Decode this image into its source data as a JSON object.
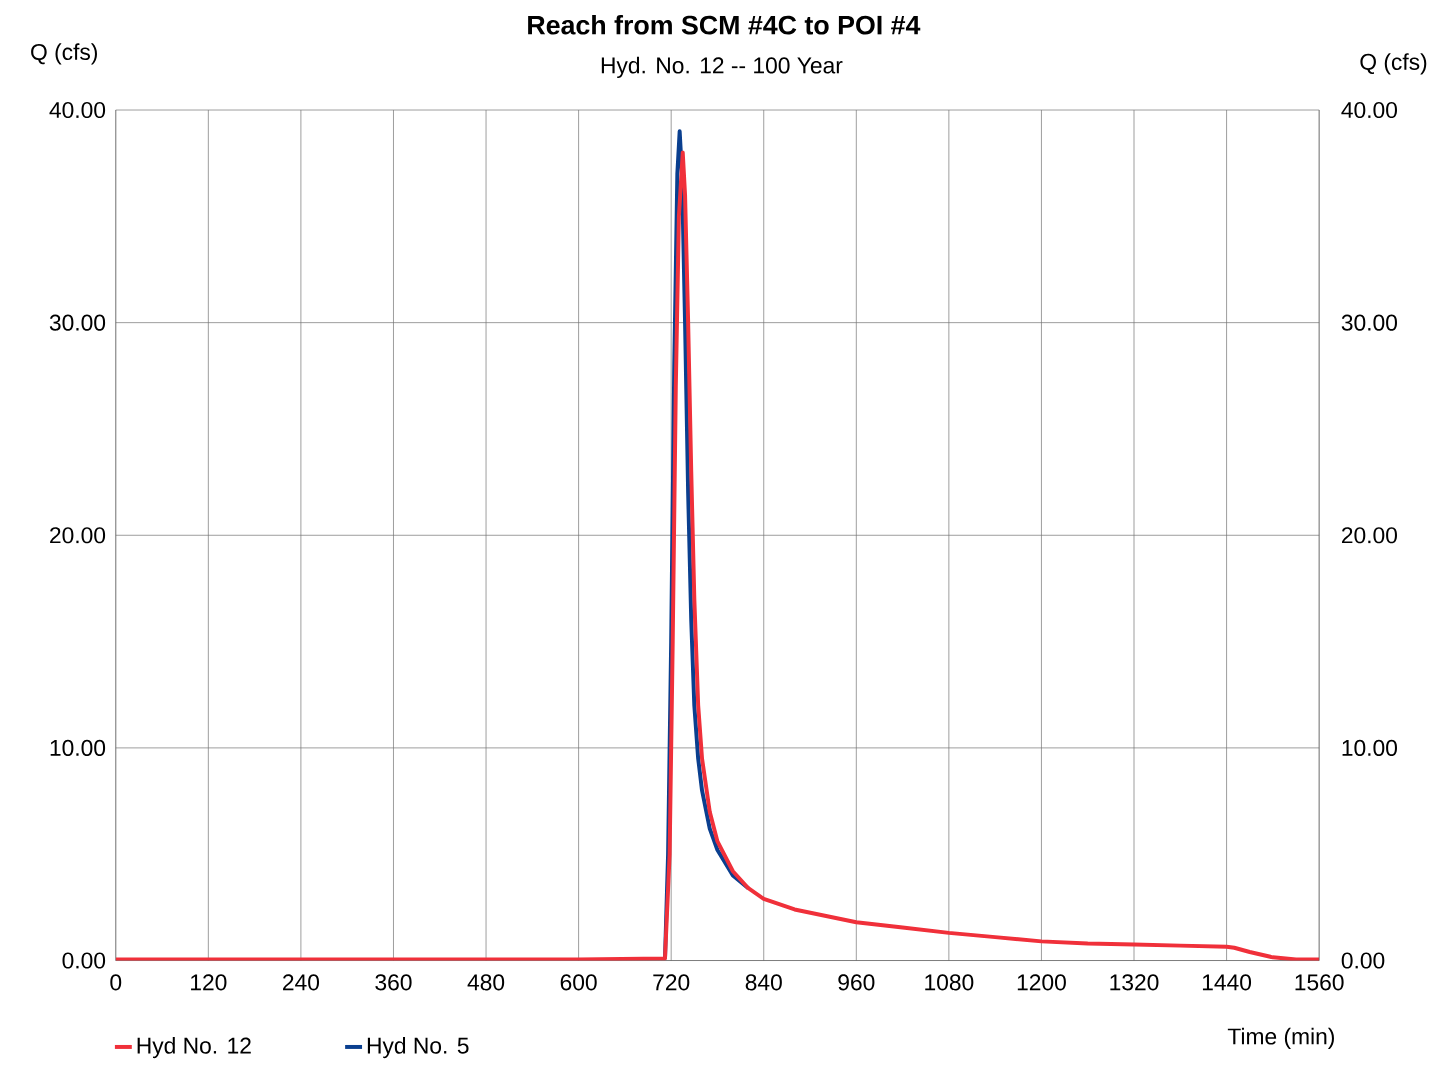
{
  "chart_data": {
    "type": "line",
    "title": "Reach from SCM #4C to POI #4",
    "subtitle": "Hyd. No. 12 -- 100 Year",
    "xlabel": "Time (min)",
    "ylabel": "Q (cfs)",
    "y2label": "Q (cfs)",
    "xlim": [
      0,
      1560
    ],
    "xticks": [
      0,
      120,
      240,
      360,
      480,
      600,
      720,
      840,
      960,
      1080,
      1200,
      1320,
      1440,
      1560
    ],
    "ylim": [
      0,
      40
    ],
    "yticks": [
      {
        "value": 0,
        "label": "0.00"
      },
      {
        "value": 10,
        "label": "10.00"
      },
      {
        "value": 20,
        "label": "20.00"
      },
      {
        "value": 30,
        "label": "30.00"
      },
      {
        "value": 40,
        "label": "40.00"
      }
    ],
    "y2lim": [
      0,
      40
    ],
    "y2ticks": [
      {
        "value": 0,
        "label": "0.00"
      },
      {
        "value": 10,
        "label": "10.00"
      },
      {
        "value": 20,
        "label": "20.00"
      },
      {
        "value": 30,
        "label": "30.00"
      },
      {
        "value": 40,
        "label": "40.00"
      }
    ],
    "grid": true,
    "legend": "bottom left",
    "marker": "none",
    "line_style": "solid",
    "series": [
      {
        "name": "Hyd No. 12",
        "color": "#f0303a",
        "x": [
          0,
          600,
          712,
          718,
          722,
          726,
          730,
          735,
          738,
          742,
          746,
          750,
          755,
          760,
          770,
          780,
          800,
          820,
          840,
          880,
          920,
          960,
          1020,
          1080,
          1140,
          1200,
          1260,
          1320,
          1380,
          1440,
          1450,
          1470,
          1500,
          1530,
          1560
        ],
        "values": [
          0.05,
          0.05,
          0.1,
          5,
          15,
          27,
          35,
          38.0,
          36,
          30,
          23,
          17,
          12,
          9.5,
          7,
          5.6,
          4.2,
          3.4,
          2.9,
          2.4,
          2.1,
          1.8,
          1.55,
          1.3,
          1.1,
          0.9,
          0.8,
          0.75,
          0.7,
          0.65,
          0.6,
          0.4,
          0.15,
          0.05,
          0.05
        ]
      },
      {
        "name": "Hyd No. 5",
        "color": "#0a3f8f",
        "x": [
          712,
          716,
          720,
          724,
          728,
          731,
          734,
          738,
          742,
          746,
          750,
          755,
          760,
          770,
          780,
          800,
          820
        ],
        "values": [
          0.1,
          5,
          15,
          28,
          37,
          39.0,
          37,
          30,
          22,
          16,
          12,
          9.5,
          8,
          6.2,
          5.2,
          4.0,
          3.4
        ]
      }
    ]
  }
}
